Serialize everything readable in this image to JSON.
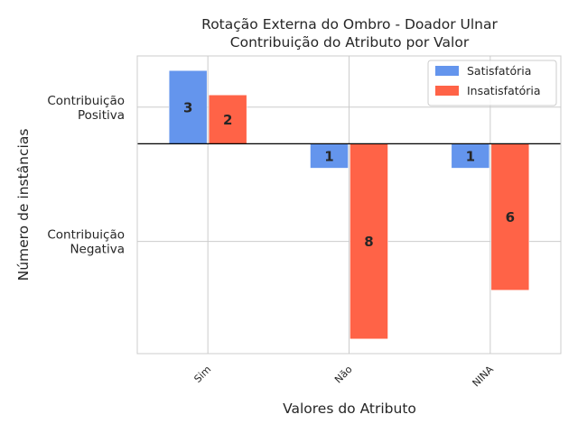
{
  "chart_data": {
    "type": "bar",
    "title_lines": [
      "Rotação Externa do Ombro - Doador Ulnar",
      "Contribuição do Atributo por Valor"
    ],
    "xlabel": "Valores do Atributo",
    "ylabel": "Número de instâncias",
    "categories": [
      "Sim",
      "Não",
      "NINA"
    ],
    "series": [
      {
        "name": "Satisfatória",
        "values": [
          3,
          -1,
          -1
        ],
        "labels": [
          "3",
          "1",
          "1"
        ],
        "color": "#6495ED"
      },
      {
        "name": "Insatisfatória",
        "values": [
          2,
          -8,
          -6
        ],
        "labels": [
          "2",
          "8",
          "6"
        ],
        "color": "#FF6347"
      }
    ],
    "ylim": [
      -8.6,
      3.6
    ],
    "y_ticks": [
      {
        "value": 1.5,
        "lines": [
          "Contribuição",
          "Positiva"
        ]
      },
      {
        "value": -4.0,
        "lines": [
          "Contribuição",
          "Negativa"
        ]
      }
    ],
    "zero_line": true,
    "grid": true,
    "legend_position": "top-right"
  }
}
